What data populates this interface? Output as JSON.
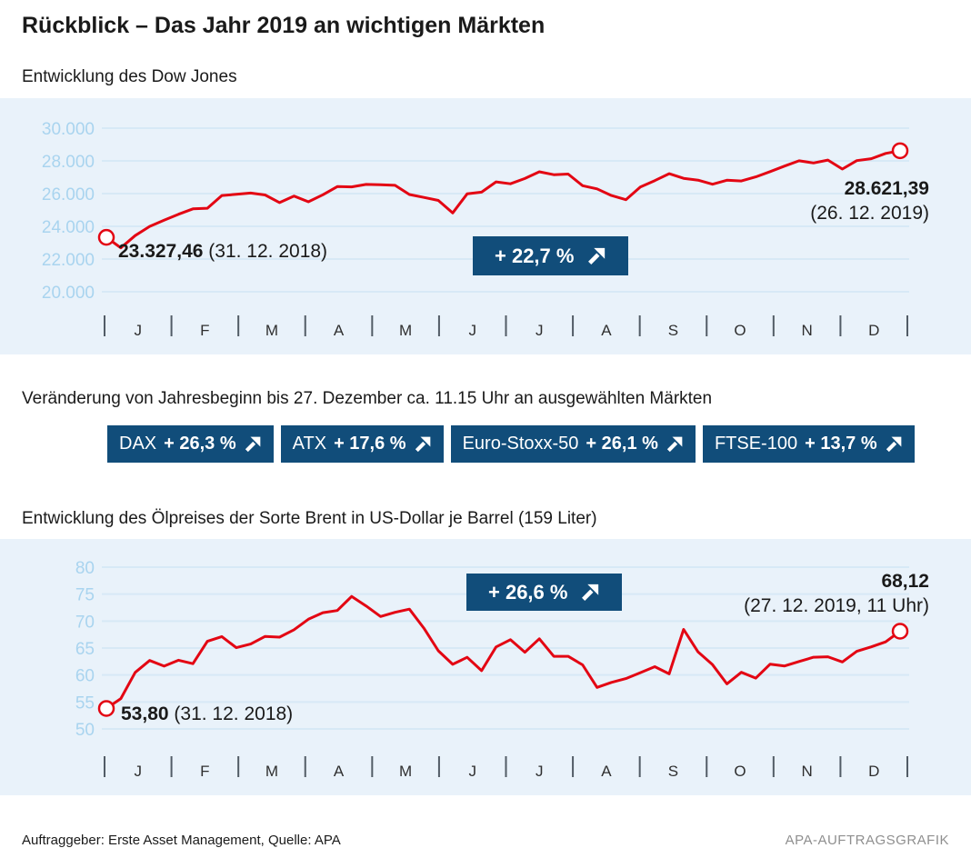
{
  "title": "Rückblick – Das Jahr 2019 an wichtigen Märkten",
  "colors": {
    "accent_blue": "#114d7a",
    "line_red": "#e30613",
    "chart_background": "#e9f2fa",
    "gridline": "#d7e9f6",
    "axis_label_blue": "#a9d4ef"
  },
  "markets": {
    "heading": "Veränderung von Jahresbeginn bis 27. Dezember ca. 11.15 Uhr an ausgewählten Märkten",
    "items": [
      {
        "label": "DAX",
        "value": "+ 26,3 %"
      },
      {
        "label": "ATX",
        "value": "+ 17,6 %"
      },
      {
        "label": "Euro-Stoxx-50",
        "value": "+ 26,1 %"
      },
      {
        "label": "FTSE-100",
        "value": "+ 13,7 %"
      }
    ]
  },
  "footer": {
    "left": "Auftraggeber: Erste Asset Management, Quelle: APA",
    "right": "APA-AUFTRAGSGRAFIK"
  },
  "chart_data": [
    {
      "type": "line",
      "title": "Entwicklung des Dow Jones",
      "x_unit": "Monate Januar–Dezember 2019 (wöchentliche Werte)",
      "month_labels": [
        "J",
        "F",
        "M",
        "A",
        "M",
        "J",
        "J",
        "A",
        "S",
        "O",
        "N",
        "D"
      ],
      "y_ticks": [
        30000,
        28000,
        26000,
        24000,
        22000,
        20000
      ],
      "y_tick_labels": [
        "30.000",
        "28.000",
        "26.000",
        "24.000",
        "22.000",
        "20.000"
      ],
      "ylim": [
        19000,
        30500
      ],
      "grid": true,
      "legend": "none",
      "marker": "open-circle-at-start-and-end",
      "change_pct": "+ 22,7 %",
      "start": {
        "value": 23327.46,
        "label": "23.327,46",
        "date_label": "(31. 12. 2018)"
      },
      "end": {
        "value": 28621.39,
        "label": "28.621,39",
        "date_label": "(26. 12. 2019)"
      },
      "series": [
        {
          "name": "Dow Jones",
          "values": [
            23327,
            22686,
            23433,
            23996,
            24370,
            24737,
            25064,
            25106,
            25883,
            25954,
            26032,
            25916,
            25450,
            25849,
            25502,
            25929,
            26425,
            26412,
            26560,
            26543,
            26505,
            25942,
            25764,
            25586,
            24815,
            25984,
            26090,
            26719,
            26600,
            26922,
            27332,
            27154,
            27192,
            26485,
            26287,
            25886,
            25629,
            26403,
            26797,
            27219,
            26935,
            26820,
            26574,
            26816,
            26770,
            27022,
            27347,
            27681,
            28005,
            27875,
            28051,
            27502,
            28015,
            28135,
            28455,
            28621
          ]
        }
      ]
    },
    {
      "type": "line",
      "title": "Entwicklung des Ölpreises der Sorte Brent in US-Dollar je Barrel (159 Liter)",
      "x_unit": "Monate Januar–Dezember 2019 (wöchentliche Werte)",
      "month_labels": [
        "J",
        "F",
        "M",
        "A",
        "M",
        "J",
        "J",
        "A",
        "S",
        "O",
        "N",
        "D"
      ],
      "y_ticks": [
        80,
        75,
        70,
        65,
        60,
        55,
        50
      ],
      "y_tick_labels": [
        "80",
        "75",
        "70",
        "65",
        "60",
        "55",
        "50"
      ],
      "ylim": [
        48,
        82
      ],
      "grid": true,
      "legend": "none",
      "marker": "open-circle-at-start-and-end",
      "change_pct": "+ 26,6 %",
      "start": {
        "value": 53.8,
        "label": "53,80",
        "date_label": "(31. 12. 2018)"
      },
      "end": {
        "value": 68.12,
        "label": "68,12",
        "date_label": "(27. 12. 2019, 11 Uhr)"
      },
      "series": [
        {
          "name": "Brent",
          "values": [
            53.8,
            55.64,
            60.48,
            62.7,
            61.64,
            62.75,
            62.1,
            66.25,
            67.12,
            65.07,
            65.74,
            67.16,
            67.03,
            68.39,
            70.34,
            71.55,
            71.97,
            74.57,
            72.8,
            70.85,
            71.62,
            72.21,
            68.69,
            64.49,
            61.99,
            63.29,
            60.81,
            65.2,
            66.55,
            64.23,
            66.72,
            63.47,
            63.46,
            61.89,
            57.71,
            58.64,
            59.34,
            60.43,
            61.54,
            60.22,
            68.45,
            64.28,
            61.91,
            58.37,
            60.51,
            59.42,
            62.02,
            61.69,
            62.51,
            63.3,
            63.39,
            62.43,
            64.39,
            65.22,
            66.14,
            68.12
          ]
        }
      ]
    }
  ]
}
